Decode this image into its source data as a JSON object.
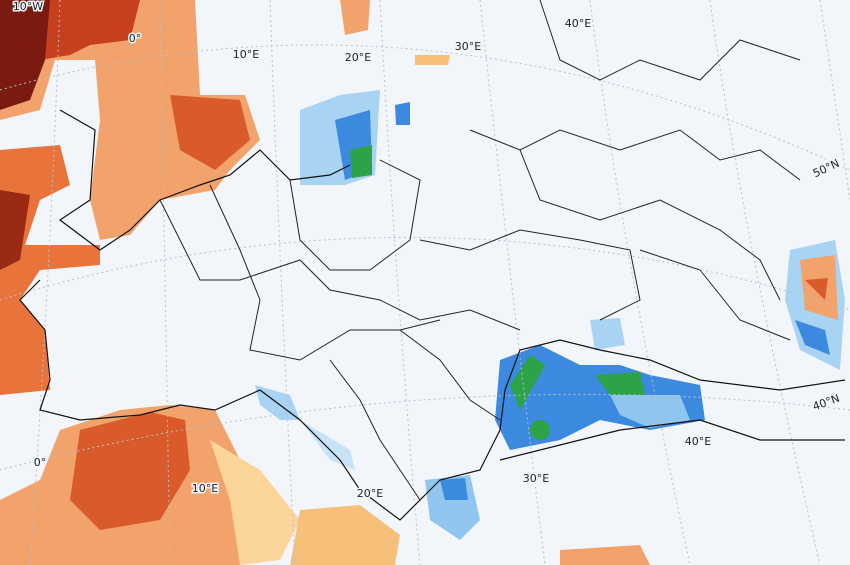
{
  "labels": {
    "top_longitudes": [
      "10°W",
      "0°",
      "10°E",
      "20°E",
      "30°E",
      "40°E"
    ],
    "bottom_longitudes": [
      "0°",
      "10°E",
      "20°E",
      "30°E",
      "40°E"
    ],
    "latitudes": [
      "50°N",
      "40°N"
    ]
  }
}
